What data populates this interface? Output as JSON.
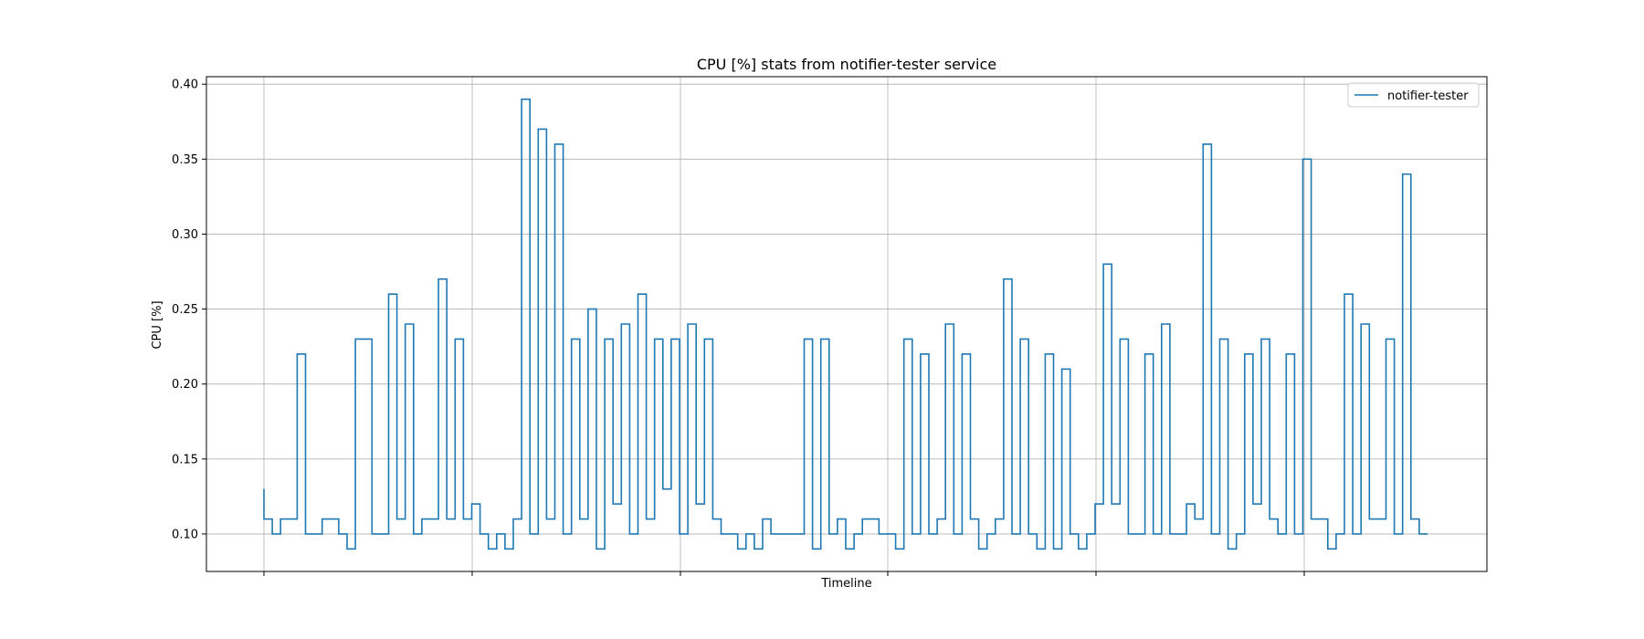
{
  "chart_data": {
    "type": "line",
    "step": true,
    "title": "CPU [%] stats from notifier-tester service",
    "xlabel": "Timeline",
    "ylabel": "CPU [%]",
    "ylim": [
      0.075,
      0.405
    ],
    "yticks": [
      "0.10",
      "0.15",
      "0.20",
      "0.25",
      "0.30",
      "0.35",
      "0.40"
    ],
    "xticks_labeled": false,
    "grid": true,
    "legend": "top-right",
    "series": [
      {
        "name": "notifier-tester",
        "color": "#1f77b4",
        "values": [
          0.13,
          0.11,
          0.1,
          0.11,
          0.11,
          0.22,
          0.1,
          0.1,
          0.11,
          0.11,
          0.1,
          0.09,
          0.23,
          0.23,
          0.1,
          0.1,
          0.26,
          0.11,
          0.24,
          0.1,
          0.11,
          0.11,
          0.27,
          0.11,
          0.23,
          0.11,
          0.12,
          0.1,
          0.09,
          0.1,
          0.09,
          0.11,
          0.39,
          0.1,
          0.37,
          0.11,
          0.36,
          0.1,
          0.23,
          0.11,
          0.25,
          0.09,
          0.23,
          0.12,
          0.24,
          0.1,
          0.26,
          0.11,
          0.23,
          0.13,
          0.23,
          0.1,
          0.24,
          0.12,
          0.23,
          0.11,
          0.1,
          0.1,
          0.09,
          0.1,
          0.09,
          0.11,
          0.1,
          0.1,
          0.1,
          0.1,
          0.23,
          0.09,
          0.23,
          0.1,
          0.11,
          0.09,
          0.1,
          0.11,
          0.11,
          0.1,
          0.1,
          0.09,
          0.23,
          0.1,
          0.22,
          0.1,
          0.11,
          0.24,
          0.1,
          0.22,
          0.11,
          0.09,
          0.1,
          0.11,
          0.27,
          0.1,
          0.23,
          0.1,
          0.09,
          0.22,
          0.09,
          0.21,
          0.1,
          0.09,
          0.1,
          0.12,
          0.28,
          0.12,
          0.23,
          0.1,
          0.1,
          0.22,
          0.1,
          0.24,
          0.1,
          0.1,
          0.12,
          0.11,
          0.36,
          0.1,
          0.23,
          0.09,
          0.1,
          0.22,
          0.12,
          0.23,
          0.11,
          0.1,
          0.22,
          0.1,
          0.35,
          0.11,
          0.11,
          0.09,
          0.1,
          0.26,
          0.1,
          0.24,
          0.11,
          0.11,
          0.23,
          0.1,
          0.34,
          0.11,
          0.1
        ]
      }
    ]
  }
}
